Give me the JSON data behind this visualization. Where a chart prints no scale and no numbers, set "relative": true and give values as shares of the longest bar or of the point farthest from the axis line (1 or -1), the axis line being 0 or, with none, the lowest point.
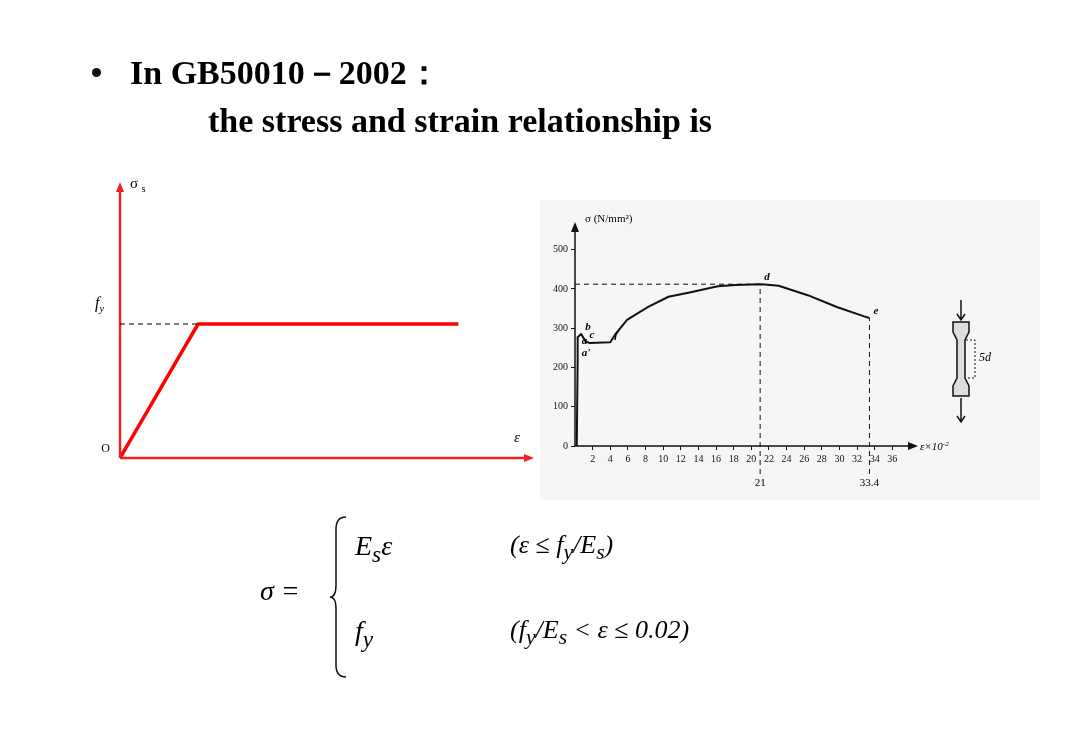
{
  "chart_data": [
    {
      "type": "line",
      "title": "In GB50010－2002：",
      "subtitle": "the stress and strain relationship is",
      "ylabel": "σ $_{s}$",
      "xlabel": "ε",
      "relative": true,
      "grid": false,
      "legend": false,
      "marker": "none",
      "categories": [
        null,
        null,
        null,
        null,
        null,
        null,
        null,
        null,
        null,
        null,
        null,
        null,
        null,
        null
      ],
      "series": [
        {
          "color": "#ff0000",
          "values": [
            0,
            0.333,
            0.667,
            1,
            1,
            1,
            1,
            1,
            1,
            1,
            1,
            1,
            1,
            1
          ]
        }
      ],
      "ref_lines": [
        {
          "axis": "y",
          "value": 1,
          "label": "f$_{y}$",
          "color": "#000000",
          "line_style": "dashed"
        }
      ],
      "annotations": [
        "O"
      ]
    },
    {
      "type": "line",
      "ylabel": "σ (N/mm²)",
      "xlabel": "ε×10$^{-2}$",
      "grid": false,
      "legend": false,
      "marker": "none",
      "xlim": [
        0,
        38
      ],
      "xticks": [
        2,
        4,
        6,
        8,
        10,
        12,
        14,
        16,
        18,
        20,
        22,
        24,
        26,
        28,
        30,
        32,
        34,
        36
      ],
      "ylim": [
        0,
        550
      ],
      "yticks": [
        0,
        100,
        200,
        300,
        400,
        500
      ],
      "series": [
        {
          "color": "#111111",
          "x": [
            0.2,
            0.3,
            0.3,
            0.7,
            1.2,
            1.7,
            4,
            4.6,
            5.9,
            8.3,
            10.6,
            13,
            16.2,
            18.2,
            21,
            23.1,
            26.4,
            29.7,
            32.8,
            33.4
          ],
          "values": [
            0,
            220,
            277,
            285,
            266,
            262,
            264,
            285,
            321,
            354,
            380,
            391,
            407,
            410,
            412,
            408,
            384,
            354,
            330,
            326
          ]
        }
      ],
      "ref_lines": [
        {
          "axis": "y",
          "value": 412,
          "color": "#111111",
          "line_style": "dashed"
        },
        {
          "axis": "x",
          "value": 21,
          "label": "21",
          "color": "#111111",
          "line_style": "dashed"
        },
        {
          "axis": "x",
          "value": 33.4,
          "label": "33.4",
          "color": "#111111",
          "line_style": "dashed"
        }
      ],
      "annotations": [
        {
          "text": "b",
          "x": 0.7,
          "y": 285
        },
        {
          "text": "c",
          "x": 1.2,
          "y": 266
        },
        {
          "text": "a",
          "x": 0.3,
          "y": 250
        },
        {
          "text": "a'",
          "x": 0.3,
          "y": 220
        },
        {
          "text": "f",
          "x": 4,
          "y": 264
        },
        {
          "text": "d",
          "x": 21,
          "y": 412
        },
        {
          "text": "e",
          "x": 33.4,
          "y": 326
        },
        "5d"
      ]
    },
    {
      "type": "other",
      "annotations": [
        "σ =",
        "E$_{s}$ε",
        "(ε ≤ f$_{y}$/E$_{s}$)",
        "f$_{y}$",
        "(f$_{y}$/E$_{s}$ < ε ≤ 0.02)"
      ]
    }
  ]
}
